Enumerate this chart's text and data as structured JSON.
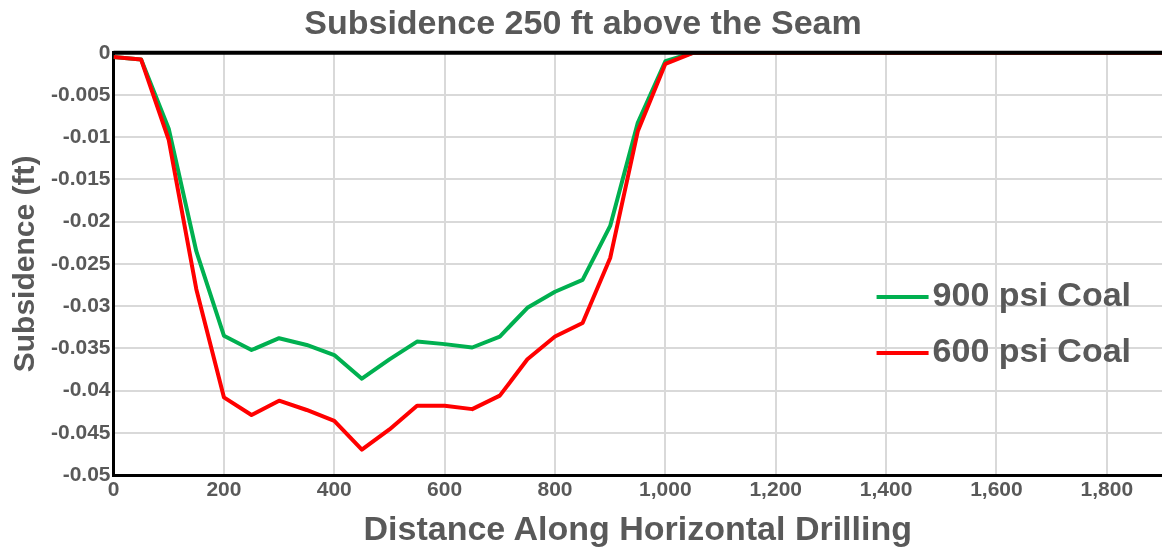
{
  "chart_data": {
    "type": "line",
    "title": "Subsidence 250 ft above the Seam",
    "xlabel": "Distance Along Horizontal Drilling",
    "ylabel": "Subsidence (ft)",
    "x": [
      0,
      50,
      100,
      150,
      200,
      250,
      300,
      350,
      400,
      450,
      500,
      550,
      600,
      650,
      700,
      750,
      800,
      850,
      900,
      950,
      1000,
      1050,
      1900
    ],
    "series": [
      {
        "name": "900 psi Coal",
        "color": "#00b050",
        "values": [
          -0.0005,
          -0.0008,
          -0.009,
          -0.0235,
          -0.0335,
          -0.0352,
          -0.0338,
          -0.0346,
          -0.0358,
          -0.0386,
          -0.0363,
          -0.0342,
          -0.0345,
          -0.0349,
          -0.0336,
          -0.0302,
          -0.0283,
          -0.0269,
          -0.0205,
          -0.0083,
          -0.001,
          0,
          0
        ]
      },
      {
        "name": "600 psi Coal",
        "color": "#ff0000",
        "values": [
          -0.0005,
          -0.0008,
          -0.0103,
          -0.028,
          -0.0408,
          -0.0429,
          -0.0412,
          -0.0423,
          -0.0436,
          -0.047,
          -0.0446,
          -0.0418,
          -0.0418,
          -0.0422,
          -0.0406,
          -0.0363,
          -0.0336,
          -0.032,
          -0.0243,
          -0.0093,
          -0.0013,
          0,
          0
        ]
      }
    ],
    "xlim": [
      0,
      1900
    ],
    "xticks": [
      0,
      200,
      400,
      600,
      800,
      {
        "value": 1000,
        "label": "1,000"
      },
      {
        "value": 1200,
        "label": "1,200"
      },
      {
        "value": 1400,
        "label": "1,400"
      },
      {
        "value": 1600,
        "label": "1,600"
      },
      {
        "value": 1800,
        "label": "1,800"
      }
    ],
    "ylim": [
      -0.05,
      0
    ],
    "yticks": [
      -0.05,
      -0.045,
      -0.04,
      -0.035,
      -0.03,
      -0.025,
      -0.02,
      -0.015,
      -0.01,
      -0.005,
      0
    ],
    "grid": true,
    "legend": "right",
    "marker": "none",
    "line_style": "solid"
  }
}
